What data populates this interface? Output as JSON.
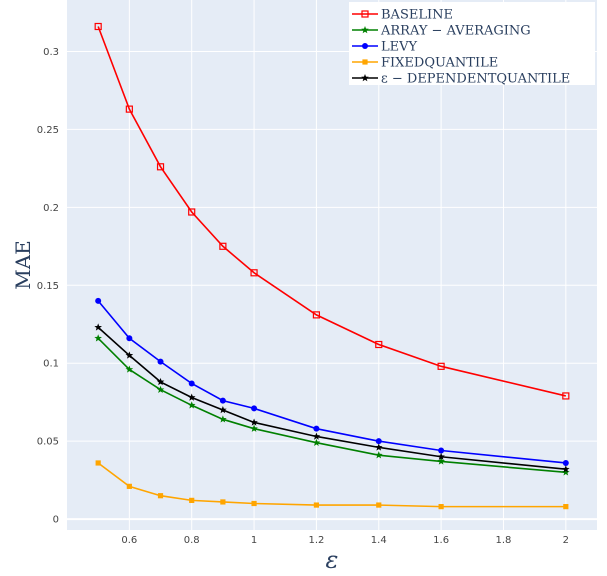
{
  "chart_data": {
    "type": "line",
    "xlabel": "ε",
    "ylabel": "MAE",
    "x": [
      0.5,
      0.6,
      0.7,
      0.8,
      0.9,
      1.0,
      1.2,
      1.4,
      1.6,
      2.0
    ],
    "xlim": [
      0.4,
      2.1
    ],
    "ylim": [
      -0.007,
      0.333
    ],
    "x_ticks": [
      0.6,
      0.8,
      1.0,
      1.2,
      1.4,
      1.6,
      1.8,
      2.0
    ],
    "x_tick_labels": [
      "0.6",
      "0.8",
      "1",
      "1.2",
      "1.4",
      "1.6",
      "1.8",
      "2"
    ],
    "y_ticks": [
      0,
      0.05,
      0.1,
      0.15,
      0.2,
      0.25,
      0.3
    ],
    "y_tick_labels": [
      "0",
      "0.05",
      "0.1",
      "0.15",
      "0.2",
      "0.25",
      "0.3"
    ],
    "grid": true,
    "legend_position": "top-right",
    "background_color": "#e5ecf6",
    "series": [
      {
        "name": "BASELINE",
        "color": "#ff0000",
        "marker": "square-open",
        "values": [
          0.316,
          0.263,
          0.226,
          0.197,
          0.175,
          0.158,
          0.131,
          0.112,
          0.098,
          0.079
        ]
      },
      {
        "name": "ARRAY − AVERAGING",
        "color": "#008000",
        "marker": "star",
        "values": [
          0.116,
          0.096,
          0.083,
          0.073,
          0.064,
          0.058,
          0.049,
          0.041,
          0.037,
          0.03
        ]
      },
      {
        "name": "LEVY",
        "color": "#0000ff",
        "marker": "circle",
        "values": [
          0.14,
          0.116,
          0.101,
          0.087,
          0.076,
          0.071,
          0.058,
          0.05,
          0.044,
          0.036
        ]
      },
      {
        "name": "FIXEDQUANTILE",
        "color": "#ffa500",
        "marker": "square",
        "values": [
          0.036,
          0.021,
          0.015,
          0.012,
          0.011,
          0.01,
          0.009,
          0.009,
          0.008,
          0.008
        ]
      },
      {
        "name": "ε − DEPENDENTQUANTILE",
        "color": "#000000",
        "marker": "star",
        "values": [
          0.123,
          0.105,
          0.088,
          0.078,
          0.07,
          0.062,
          0.053,
          0.046,
          0.04,
          0.032
        ]
      }
    ]
  }
}
